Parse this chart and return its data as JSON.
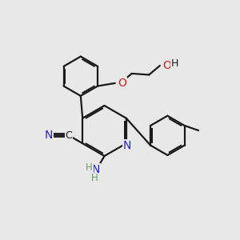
{
  "bg_color": "#e8e8e8",
  "bond_color": "#1a1a1a",
  "bond_width": 1.6,
  "N_color": "#2222cc",
  "O_color": "#cc2222",
  "H_color": "#6a9a6a",
  "C_color": "#1a1a1a",
  "font_size": 8.5,
  "figsize": [
    3.0,
    3.0
  ],
  "dpi": 100,
  "xlim": [
    0,
    10
  ],
  "ylim": [
    0,
    10
  ]
}
